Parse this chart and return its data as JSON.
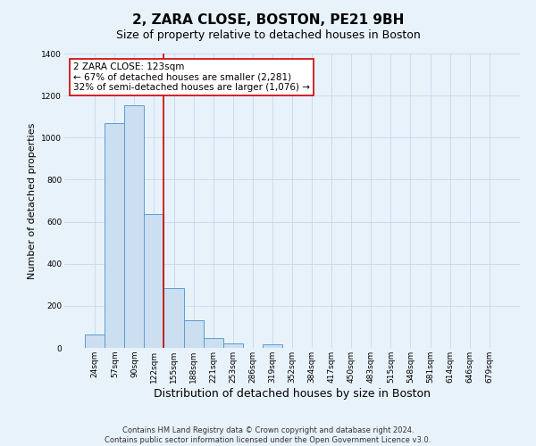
{
  "title": "2, ZARA CLOSE, BOSTON, PE21 9BH",
  "subtitle": "Size of property relative to detached houses in Boston",
  "xlabel": "Distribution of detached houses by size in Boston",
  "ylabel": "Number of detached properties",
  "bar_labels": [
    "24sqm",
    "57sqm",
    "90sqm",
    "122sqm",
    "155sqm",
    "188sqm",
    "221sqm",
    "253sqm",
    "286sqm",
    "319sqm",
    "352sqm",
    "384sqm",
    "417sqm",
    "450sqm",
    "483sqm",
    "515sqm",
    "548sqm",
    "581sqm",
    "614sqm",
    "646sqm",
    "679sqm"
  ],
  "bar_values": [
    65,
    1070,
    1155,
    635,
    285,
    130,
    47,
    20,
    0,
    18,
    0,
    0,
    0,
    0,
    0,
    0,
    0,
    0,
    0,
    0,
    0
  ],
  "bar_color": "#ccdff0",
  "bar_edge_color": "#5b9bd5",
  "property_line_color": "#cc0000",
  "property_line_index": 3,
  "annotation_line1": "2 ZARA CLOSE: 123sqm",
  "annotation_line2": "← 67% of detached houses are smaller (2,281)",
  "annotation_line3": "32% of semi-detached houses are larger (1,076) →",
  "annotation_box_color": "#ffffff",
  "annotation_box_edge_color": "#cc0000",
  "ylim": [
    0,
    1400
  ],
  "yticks": [
    0,
    200,
    400,
    600,
    800,
    1000,
    1200,
    1400
  ],
  "bg_color": "#e8f2fb",
  "plot_bg_color": "#e8f2fb",
  "grid_color": "#c5d8ec",
  "footer_line1": "Contains HM Land Registry data © Crown copyright and database right 2024.",
  "footer_line2": "Contains public sector information licensed under the Open Government Licence v3.0.",
  "title_fontsize": 11,
  "subtitle_fontsize": 9,
  "xlabel_fontsize": 9,
  "ylabel_fontsize": 8,
  "tick_fontsize": 6.5,
  "annotation_fontsize": 7.5,
  "footer_fontsize": 6
}
